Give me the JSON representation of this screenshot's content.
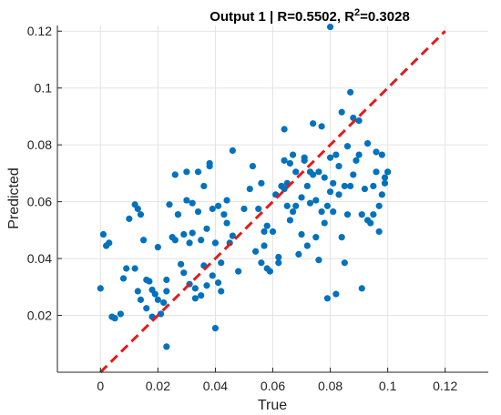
{
  "chart_data": {
    "type": "scatter",
    "title": "Output 1 | R=0.5502, R",
    "title_sup": "2",
    "title_tail": "=0.3028",
    "xlabel": "True",
    "ylabel": "Predicted",
    "xlim": [
      -0.015,
      0.135
    ],
    "ylim": [
      0,
      0.122
    ],
    "xticks": [
      0,
      0.02,
      0.04,
      0.06,
      0.08,
      0.1,
      0.12
    ],
    "yticks": [
      0.02,
      0.04,
      0.06,
      0.08,
      0.1,
      0.12
    ],
    "xtick_labels": [
      "0",
      "0.02",
      "0.04",
      "0.06",
      "0.08",
      "0.1",
      "0.12"
    ],
    "ytick_labels": [
      "0.02",
      "0.04",
      "0.06",
      "0.08",
      "0.1",
      "0.12"
    ],
    "grid": true,
    "colors": {
      "points": "#0072bd",
      "fit_line": "#e41a1c",
      "grid": "#e3e3e3",
      "axis": "#262626"
    },
    "fit_line": {
      "x": [
        0,
        0.12
      ],
      "y": [
        0,
        0.12
      ],
      "style": "dashed"
    },
    "points": [
      [
        0.0,
        0.0295
      ],
      [
        0.001,
        0.0485
      ],
      [
        0.002,
        0.0445
      ],
      [
        0.003,
        0.0455
      ],
      [
        0.004,
        0.0195
      ],
      [
        0.005,
        0.019
      ],
      [
        0.007,
        0.0205
      ],
      [
        0.008,
        0.033
      ],
      [
        0.009,
        0.0365
      ],
      [
        0.01,
        0.054
      ],
      [
        0.012,
        0.059
      ],
      [
        0.013,
        0.0575
      ],
      [
        0.014,
        0.0555
      ],
      [
        0.012,
        0.0365
      ],
      [
        0.013,
        0.0285
      ],
      [
        0.014,
        0.0255
      ],
      [
        0.015,
        0.0465
      ],
      [
        0.016,
        0.0325
      ],
      [
        0.016,
        0.0225
      ],
      [
        0.018,
        0.0195
      ],
      [
        0.017,
        0.032
      ],
      [
        0.018,
        0.029
      ],
      [
        0.019,
        0.0275
      ],
      [
        0.02,
        0.044
      ],
      [
        0.021,
        0.0205
      ],
      [
        0.022,
        0.0245
      ],
      [
        0.023,
        0.0285
      ],
      [
        0.023,
        0.0325
      ],
      [
        0.024,
        0.059
      ],
      [
        0.023,
        0.009
      ],
      [
        0.025,
        0.0475
      ],
      [
        0.026,
        0.0465
      ],
      [
        0.026,
        0.0695
      ],
      [
        0.027,
        0.0555
      ],
      [
        0.028,
        0.038
      ],
      [
        0.029,
        0.035
      ],
      [
        0.029,
        0.0485
      ],
      [
        0.03,
        0.0605
      ],
      [
        0.03,
        0.0705
      ],
      [
        0.031,
        0.031
      ],
      [
        0.031,
        0.0455
      ],
      [
        0.032,
        0.0595
      ],
      [
        0.032,
        0.049
      ],
      [
        0.033,
        0.026
      ],
      [
        0.033,
        0.0295
      ],
      [
        0.034,
        0.0705
      ],
      [
        0.034,
        0.0565
      ],
      [
        0.035,
        0.0465
      ],
      [
        0.035,
        0.027
      ],
      [
        0.036,
        0.0375
      ],
      [
        0.036,
        0.0655
      ],
      [
        0.037,
        0.0305
      ],
      [
        0.037,
        0.0505
      ],
      [
        0.038,
        0.0735
      ],
      [
        0.038,
        0.0725
      ],
      [
        0.039,
        0.0575
      ],
      [
        0.039,
        0.034
      ],
      [
        0.04,
        0.0455
      ],
      [
        0.04,
        0.0155
      ],
      [
        0.041,
        0.0315
      ],
      [
        0.041,
        0.0585
      ],
      [
        0.042,
        0.0285
      ],
      [
        0.042,
        0.0385
      ],
      [
        0.043,
        0.0555
      ],
      [
        0.044,
        0.0525
      ],
      [
        0.045,
        0.0455
      ],
      [
        0.046,
        0.048
      ],
      [
        0.046,
        0.078
      ],
      [
        0.048,
        0.0355
      ],
      [
        0.05,
        0.0575
      ],
      [
        0.052,
        0.0645
      ],
      [
        0.053,
        0.0725
      ],
      [
        0.054,
        0.0425
      ],
      [
        0.055,
        0.0575
      ],
      [
        0.056,
        0.0385
      ],
      [
        0.056,
        0.0665
      ],
      [
        0.057,
        0.0495
      ],
      [
        0.058,
        0.0515
      ],
      [
        0.058,
        0.0365
      ],
      [
        0.059,
        0.0355
      ],
      [
        0.06,
        0.0495
      ],
      [
        0.061,
        0.0625
      ],
      [
        0.062,
        0.0405
      ],
      [
        0.062,
        0.0385
      ],
      [
        0.063,
        0.0655
      ],
      [
        0.064,
        0.0855
      ],
      [
        0.064,
        0.0745
      ],
      [
        0.065,
        0.0585
      ],
      [
        0.065,
        0.0665
      ],
      [
        0.066,
        0.0535
      ],
      [
        0.066,
        0.0735
      ],
      [
        0.067,
        0.0765
      ],
      [
        0.067,
        0.0565
      ],
      [
        0.068,
        0.0585
      ],
      [
        0.068,
        0.0705
      ],
      [
        0.069,
        0.0415
      ],
      [
        0.07,
        0.0485
      ],
      [
        0.07,
        0.0615
      ],
      [
        0.071,
        0.0755
      ],
      [
        0.071,
        0.0745
      ],
      [
        0.072,
        0.0655
      ],
      [
        0.072,
        0.0445
      ],
      [
        0.073,
        0.0595
      ],
      [
        0.074,
        0.0875
      ],
      [
        0.074,
        0.0695
      ],
      [
        0.075,
        0.0605
      ],
      [
        0.075,
        0.0475
      ],
      [
        0.076,
        0.0705
      ],
      [
        0.076,
        0.0395
      ],
      [
        0.077,
        0.0565
      ],
      [
        0.077,
        0.0865
      ],
      [
        0.078,
        0.0685
      ],
      [
        0.078,
        0.0525
      ],
      [
        0.079,
        0.0585
      ],
      [
        0.079,
        0.026
      ],
      [
        0.08,
        0.0635
      ],
      [
        0.08,
        0.0755
      ],
      [
        0.081,
        0.0665
      ],
      [
        0.081,
        0.0565
      ],
      [
        0.082,
        0.0765
      ],
      [
        0.082,
        0.0275
      ],
      [
        0.083,
        0.0625
      ],
      [
        0.083,
        0.0725
      ],
      [
        0.084,
        0.0915
      ],
      [
        0.084,
        0.0475
      ],
      [
        0.085,
        0.0655
      ],
      [
        0.085,
        0.0385
      ],
      [
        0.086,
        0.0555
      ],
      [
        0.086,
        0.0795
      ],
      [
        0.087,
        0.0655
      ],
      [
        0.087,
        0.0985
      ],
      [
        0.088,
        0.0695
      ],
      [
        0.089,
        0.0745
      ],
      [
        0.09,
        0.0885
      ],
      [
        0.09,
        0.0765
      ],
      [
        0.091,
        0.0555
      ],
      [
        0.091,
        0.0295
      ],
      [
        0.092,
        0.0645
      ],
      [
        0.093,
        0.0535
      ],
      [
        0.093,
        0.0805
      ],
      [
        0.094,
        0.0525
      ],
      [
        0.095,
        0.0555
      ],
      [
        0.095,
        0.0655
      ],
      [
        0.096,
        0.0705
      ],
      [
        0.096,
        0.0775
      ],
      [
        0.097,
        0.0495
      ],
      [
        0.097,
        0.0585
      ],
      [
        0.098,
        0.0765
      ],
      [
        0.098,
        0.0625
      ],
      [
        0.099,
        0.0685
      ],
      [
        0.1,
        0.0705
      ],
      [
        0.099,
        0.0665
      ],
      [
        0.08,
        0.1215
      ],
      [
        0.088,
        0.0895
      ],
      [
        0.073,
        0.0705
      ],
      [
        0.064,
        0.0645
      ],
      [
        0.057,
        0.0445
      ],
      [
        0.027,
        0.0555
      ],
      [
        0.02,
        0.0255
      ],
      [
        0.044,
        0.0605
      ]
    ]
  }
}
